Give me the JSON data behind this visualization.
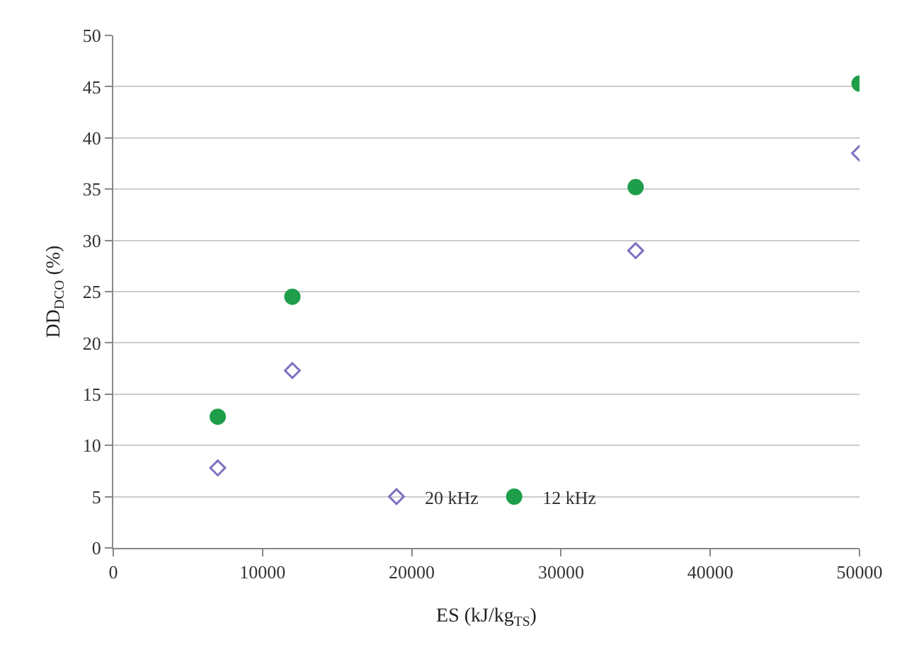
{
  "chart_data": {
    "type": "scatter",
    "xlabel": "ES (kJ/kg$_{TS}$)",
    "ylabel": "DD$_{DCO}$ (%)",
    "xlim": [
      0,
      50000
    ],
    "xticks": [
      0,
      10000,
      20000,
      30000,
      40000,
      50000
    ],
    "ylim": [
      0,
      50
    ],
    "yticks": [
      0,
      5,
      10,
      15,
      20,
      25,
      30,
      35,
      40,
      45,
      50
    ],
    "grid": "y",
    "legend": "bottom",
    "series": [
      {
        "name": "20 kHz",
        "color": "#7b72c0",
        "marker": "diamond-open",
        "x": [
          7000,
          12000,
          35000,
          50000
        ],
        "values": [
          7.8,
          17.3,
          29,
          38.5
        ]
      },
      {
        "name": "12 kHz",
        "color": "#1f9e4a",
        "marker": "circle",
        "x": [
          7000,
          12000,
          35000,
          50000
        ],
        "values": [
          12.8,
          24.5,
          35.2,
          45.3
        ]
      }
    ]
  }
}
